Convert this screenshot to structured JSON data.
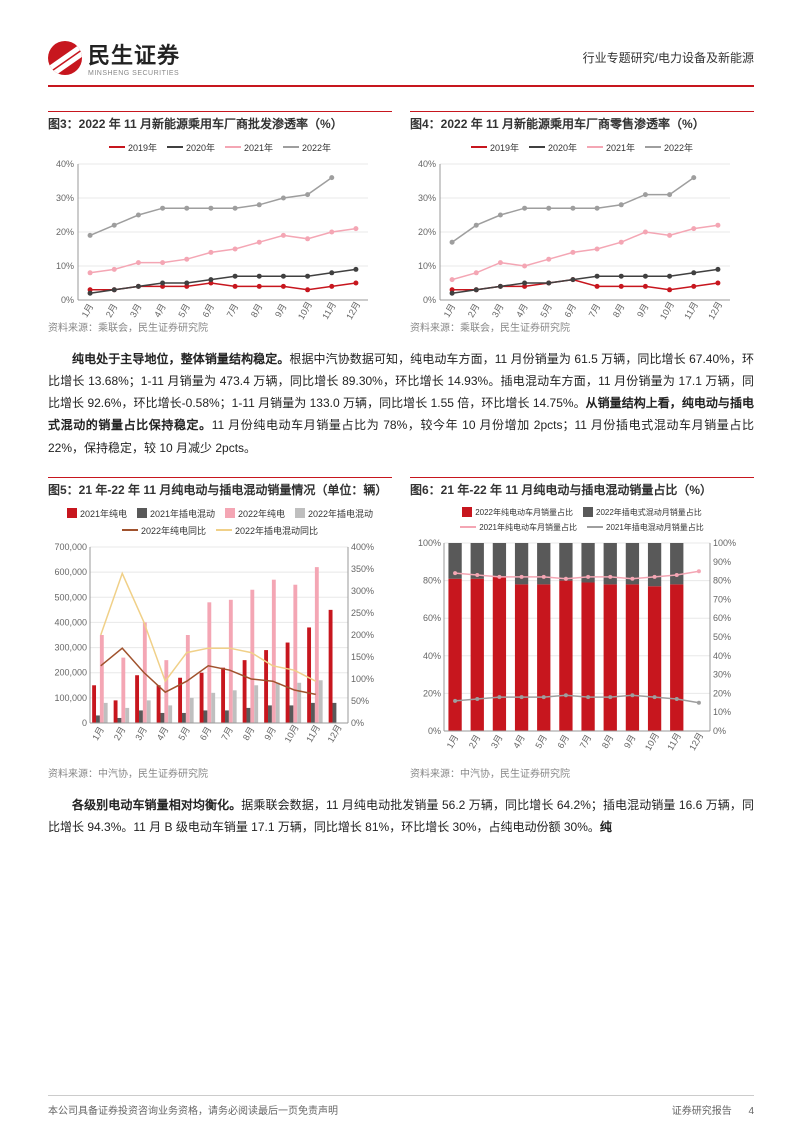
{
  "header": {
    "company": "民生证券",
    "company_sub": "MINSHENG SECURITIES",
    "category": "行业专题研究/电力设备及新能源"
  },
  "chart3": {
    "title": "图3：2022 年 11 月新能源乘用车厂商批发渗透率（%）",
    "type": "line",
    "categories": [
      "1月",
      "2月",
      "3月",
      "4月",
      "5月",
      "6月",
      "7月",
      "8月",
      "9月",
      "10月",
      "11月",
      "12月"
    ],
    "series": [
      {
        "name": "2019年",
        "color": "#c7161e",
        "values": [
          3,
          3,
          4,
          4,
          4,
          5,
          4,
          4,
          4,
          3,
          4,
          5
        ]
      },
      {
        "name": "2020年",
        "color": "#404040",
        "values": [
          2,
          3,
          4,
          5,
          5,
          6,
          7,
          7,
          7,
          7,
          8,
          9
        ]
      },
      {
        "name": "2021年",
        "color": "#f4a6b4",
        "values": [
          8,
          9,
          11,
          11,
          12,
          14,
          15,
          17,
          19,
          18,
          20,
          21
        ]
      },
      {
        "name": "2022年",
        "color": "#9e9e9e",
        "values": [
          19,
          22,
          25,
          27,
          27,
          27,
          27,
          28,
          30,
          31,
          36,
          null
        ]
      }
    ],
    "ylim": [
      0,
      40
    ],
    "ytick_step": 10,
    "ysuffix": "%",
    "background": "#ffffff",
    "grid_color": "#e8e8e8",
    "source": "资料来源：乘联会，民生证券研究院"
  },
  "chart4": {
    "title": "图4：2022 年 11 月新能源乘用车厂商零售渗透率（%）",
    "type": "line",
    "categories": [
      "1月",
      "2月",
      "3月",
      "4月",
      "5月",
      "6月",
      "7月",
      "8月",
      "9月",
      "10月",
      "11月",
      "12月"
    ],
    "series": [
      {
        "name": "2019年",
        "color": "#c7161e",
        "values": [
          3,
          3,
          4,
          4,
          5,
          6,
          4,
          4,
          4,
          3,
          4,
          5
        ]
      },
      {
        "name": "2020年",
        "color": "#404040",
        "values": [
          2,
          3,
          4,
          5,
          5,
          6,
          7,
          7,
          7,
          7,
          8,
          9
        ]
      },
      {
        "name": "2021年",
        "color": "#f4a6b4",
        "values": [
          6,
          8,
          11,
          10,
          12,
          14,
          15,
          17,
          20,
          19,
          21,
          22
        ]
      },
      {
        "name": "2022年",
        "color": "#9e9e9e",
        "values": [
          17,
          22,
          25,
          27,
          27,
          27,
          27,
          28,
          31,
          31,
          36,
          null
        ]
      }
    ],
    "ylim": [
      0,
      40
    ],
    "ytick_step": 10,
    "ysuffix": "%",
    "background": "#ffffff",
    "grid_color": "#e8e8e8",
    "source": "资料来源：乘联会，民生证券研究院"
  },
  "paragraph1": {
    "html": "<span class='bold'>纯电处于主导地位，整体销量结构稳定。</span>根据中汽协数据可知，纯电动车方面，11 月份销量为 61.5 万辆，同比增长 67.40%，环比增长 13.68%；1-11 月销量为 473.4 万辆，同比增长 89.30%，环比增长 14.93%。插电混动车方面，11 月份销量为 17.1 万辆，同比增长 92.6%，环比增长-0.58%；1-11 月销量为 133.0 万辆，同比增长 1.55 倍，环比增长 14.75%。<span class='bold'>从销量结构上看，纯电动与插电式混动的销量占比保持稳定。</span>11 月份纯电动车月销量占比为 78%，较今年 10 月份增加 2pcts；11 月份插电式混动车月销量占比 22%，保持稳定，较 10 月减少 2pcts。"
  },
  "chart5": {
    "title": "图5：21 年-22 年 11 月纯电动与插电混动销量情况（单位：辆）",
    "type": "bar+line",
    "categories": [
      "1月",
      "2月",
      "3月",
      "4月",
      "5月",
      "6月",
      "7月",
      "8月",
      "9月",
      "10月",
      "11月",
      "12月"
    ],
    "bars": [
      {
        "name": "2021年纯电",
        "color": "#c7161e",
        "values": [
          150000,
          90000,
          190000,
          150000,
          180000,
          200000,
          220000,
          250000,
          290000,
          320000,
          380000,
          450000
        ]
      },
      {
        "name": "2021年插电混动",
        "color": "#595959",
        "values": [
          30000,
          20000,
          50000,
          40000,
          40000,
          50000,
          50000,
          60000,
          70000,
          70000,
          80000,
          80000
        ]
      },
      {
        "name": "2022年纯电",
        "color": "#f4a6b4",
        "values": [
          350000,
          260000,
          400000,
          250000,
          350000,
          480000,
          490000,
          530000,
          570000,
          550000,
          620000,
          null
        ]
      },
      {
        "name": "2022年插电混动",
        "color": "#bfbfbf",
        "values": [
          80000,
          60000,
          90000,
          70000,
          100000,
          120000,
          130000,
          150000,
          160000,
          160000,
          170000,
          null
        ]
      }
    ],
    "lines": [
      {
        "name": "2022年纯电同比",
        "color": "#a0522d",
        "values": [
          130,
          170,
          115,
          70,
          95,
          130,
          120,
          100,
          95,
          75,
          65,
          null
        ]
      },
      {
        "name": "2022年插电混动同比",
        "color": "#f0d088",
        "values": [
          200,
          340,
          230,
          95,
          160,
          170,
          170,
          160,
          130,
          120,
          95,
          null
        ]
      }
    ],
    "ylim_left": [
      0,
      700000
    ],
    "ytick_left": 100000,
    "ylim_right": [
      0,
      400
    ],
    "ytick_right": 50,
    "ysuffix_right": "%",
    "background": "#ffffff",
    "grid_color": "#e8e8e8",
    "source": "资料来源：中汽协，民生证券研究院"
  },
  "chart6": {
    "title": "图6：21 年-22 年 11 月纯电动与插电混动销量占比（%）",
    "type": "stacked-bar+line",
    "categories": [
      "1月",
      "2月",
      "3月",
      "4月",
      "5月",
      "6月",
      "7月",
      "8月",
      "9月",
      "10月",
      "11月",
      "12月"
    ],
    "bars": [
      {
        "name": "2022年纯电动车月销量占比",
        "color": "#c7161e",
        "values": [
          81,
          81,
          82,
          78,
          78,
          80,
          79,
          78,
          78,
          77,
          78,
          null
        ]
      },
      {
        "name": "2022年插电式混动月销量占比",
        "color": "#595959",
        "values": [
          19,
          19,
          18,
          22,
          22,
          20,
          21,
          22,
          22,
          23,
          22,
          null
        ]
      }
    ],
    "lines": [
      {
        "name": "2021年纯电动车月销量占比",
        "color": "#f4a6b4",
        "values": [
          84,
          83,
          82,
          82,
          82,
          81,
          82,
          82,
          81,
          82,
          83,
          85
        ]
      },
      {
        "name": "2021年插电混动月销量占比",
        "color": "#9e9e9e",
        "values": [
          16,
          17,
          18,
          18,
          18,
          19,
          18,
          18,
          19,
          18,
          17,
          15
        ]
      }
    ],
    "ylim_left": [
      0,
      100
    ],
    "ytick_left": 20,
    "ysuffix_left": "%",
    "ylim_right": [
      0,
      100
    ],
    "ytick_right": 10,
    "ysuffix_right": "%",
    "background": "#ffffff",
    "grid_color": "#e8e8e8",
    "source": "资料来源：中汽协，民生证券研究院"
  },
  "paragraph2": {
    "html": "<span class='bold'>各级别电动车销量相对均衡化。</span>据乘联会数据，11 月纯电动批发销量 56.2 万辆，同比增长 64.2%；插电混动销量 16.6 万辆，同比增长 94.3%。11 月 B 级电动车销量 17.1 万辆，同比增长 81%，环比增长 30%，占纯电动份额 30%。<span class='bold'>纯</span>"
  },
  "footer": {
    "disclaimer": "本公司具备证券投资咨询业务资格，请务必阅读最后一页免责声明",
    "report_type": "证券研究报告",
    "page": "4"
  },
  "colors": {
    "brand_red": "#c7161e"
  }
}
